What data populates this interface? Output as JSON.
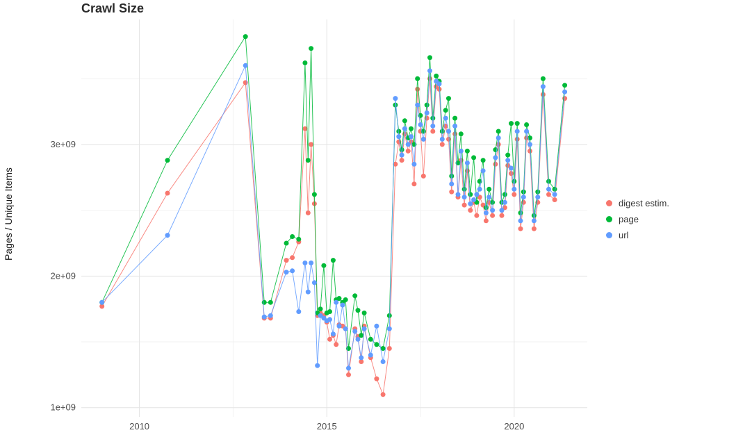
{
  "chart_data": {
    "type": "line",
    "title": "Crawl Size",
    "xlabel": "",
    "ylabel": "Pages / Unique Items",
    "value_unit": "items, in units of 1e9 (billions)",
    "x_range": [
      2008.45,
      2021.95
    ],
    "y_range": [
      0.93,
      3.95
    ],
    "grid": "on",
    "legend_position": "right",
    "x_ticks": [
      {
        "value": 2010,
        "label": "2010"
      },
      {
        "value": 2015,
        "label": "2015"
      },
      {
        "value": 2020,
        "label": "2020"
      }
    ],
    "y_ticks": [
      {
        "value": 1,
        "label": "1e+09"
      },
      {
        "value": 2,
        "label": "2e+09"
      },
      {
        "value": 3,
        "label": "3e+09"
      }
    ],
    "x_minor": [
      2012.5,
      2017.5
    ],
    "y_minor": [
      1.5,
      2.5,
      3.5
    ],
    "x": [
      2009.0,
      2010.75,
      2012.83,
      2013.33,
      2013.5,
      2013.92,
      2014.08,
      2014.25,
      2014.42,
      2014.5,
      2014.58,
      2014.67,
      2014.75,
      2014.83,
      2014.92,
      2015.0,
      2015.08,
      2015.17,
      2015.25,
      2015.33,
      2015.42,
      2015.5,
      2015.58,
      2015.75,
      2015.83,
      2015.92,
      2016.0,
      2016.17,
      2016.33,
      2016.5,
      2016.67,
      2016.83,
      2016.92,
      2017.0,
      2017.08,
      2017.17,
      2017.25,
      2017.33,
      2017.42,
      2017.5,
      2017.58,
      2017.67,
      2017.75,
      2017.83,
      2017.92,
      2018.0,
      2018.08,
      2018.17,
      2018.25,
      2018.33,
      2018.42,
      2018.5,
      2018.58,
      2018.67,
      2018.75,
      2018.83,
      2018.92,
      2019.0,
      2019.08,
      2019.17,
      2019.25,
      2019.33,
      2019.42,
      2019.5,
      2019.58,
      2019.67,
      2019.75,
      2019.83,
      2019.92,
      2020.0,
      2020.08,
      2020.17,
      2020.25,
      2020.33,
      2020.42,
      2020.53,
      2020.63,
      2020.77,
      2020.92,
      2021.08,
      2021.35
    ],
    "series": [
      {
        "name": "digest estim.",
        "color": "#F8766D",
        "values": [
          1.77,
          2.63,
          3.47,
          1.68,
          1.68,
          2.12,
          2.14,
          2.26,
          3.12,
          2.48,
          3.0,
          2.55,
          1.7,
          1.72,
          1.7,
          1.65,
          1.52,
          1.55,
          1.48,
          1.63,
          1.62,
          1.6,
          1.25,
          1.6,
          1.54,
          1.35,
          1.62,
          1.38,
          1.22,
          1.1,
          1.45,
          2.85,
          3.02,
          2.88,
          3.08,
          2.95,
          3.02,
          2.7,
          3.42,
          3.1,
          2.76,
          3.2,
          3.5,
          3.1,
          3.44,
          3.42,
          3.0,
          3.14,
          3.04,
          2.64,
          3.08,
          2.6,
          2.88,
          2.54,
          2.8,
          2.5,
          2.56,
          2.46,
          2.6,
          2.54,
          2.42,
          2.56,
          2.46,
          2.85,
          3.0,
          2.46,
          2.52,
          2.84,
          2.78,
          2.62,
          3.04,
          2.36,
          2.56,
          3.05,
          2.95,
          2.36,
          2.56,
          3.38,
          2.62,
          2.58,
          3.35
        ]
      },
      {
        "name": "page",
        "color": "#00BA38",
        "values": [
          1.8,
          2.88,
          3.82,
          1.8,
          1.8,
          2.25,
          2.3,
          2.28,
          3.62,
          2.88,
          3.73,
          2.62,
          1.72,
          1.75,
          2.08,
          1.72,
          1.73,
          2.12,
          1.82,
          1.83,
          1.8,
          1.82,
          1.45,
          1.85,
          1.74,
          1.55,
          1.72,
          1.52,
          1.48,
          1.45,
          1.7,
          3.3,
          3.1,
          2.96,
          3.18,
          3.05,
          3.12,
          3.0,
          3.5,
          3.22,
          3.1,
          3.3,
          3.66,
          3.2,
          3.52,
          3.48,
          3.1,
          3.26,
          3.35,
          2.76,
          3.2,
          2.86,
          3.08,
          2.66,
          2.95,
          2.62,
          2.9,
          2.56,
          2.72,
          2.88,
          2.52,
          2.66,
          2.56,
          2.96,
          3.1,
          2.56,
          2.62,
          2.92,
          3.16,
          2.72,
          3.16,
          2.48,
          2.64,
          3.15,
          3.05,
          2.46,
          2.64,
          3.5,
          2.72,
          2.66,
          3.45
        ]
      },
      {
        "name": "url",
        "color": "#619CFF",
        "values": [
          1.8,
          2.31,
          3.6,
          1.69,
          1.7,
          2.03,
          2.04,
          1.73,
          2.1,
          1.88,
          2.1,
          1.95,
          1.32,
          1.7,
          1.68,
          1.66,
          1.67,
          1.56,
          1.8,
          1.62,
          1.78,
          1.6,
          1.3,
          1.58,
          1.52,
          1.38,
          1.6,
          1.4,
          1.62,
          1.35,
          1.6,
          3.35,
          3.06,
          2.92,
          3.12,
          3.0,
          3.06,
          2.85,
          3.3,
          3.15,
          3.04,
          3.24,
          3.56,
          3.14,
          3.48,
          3.46,
          3.04,
          3.2,
          3.1,
          2.7,
          3.14,
          2.62,
          2.95,
          2.6,
          2.86,
          2.55,
          2.58,
          2.62,
          2.66,
          2.8,
          2.48,
          2.6,
          2.5,
          2.9,
          3.05,
          2.5,
          2.56,
          2.88,
          2.82,
          2.66,
          3.1,
          2.42,
          2.6,
          3.1,
          3.0,
          2.42,
          2.6,
          3.44,
          2.66,
          2.62,
          3.4
        ]
      }
    ]
  }
}
